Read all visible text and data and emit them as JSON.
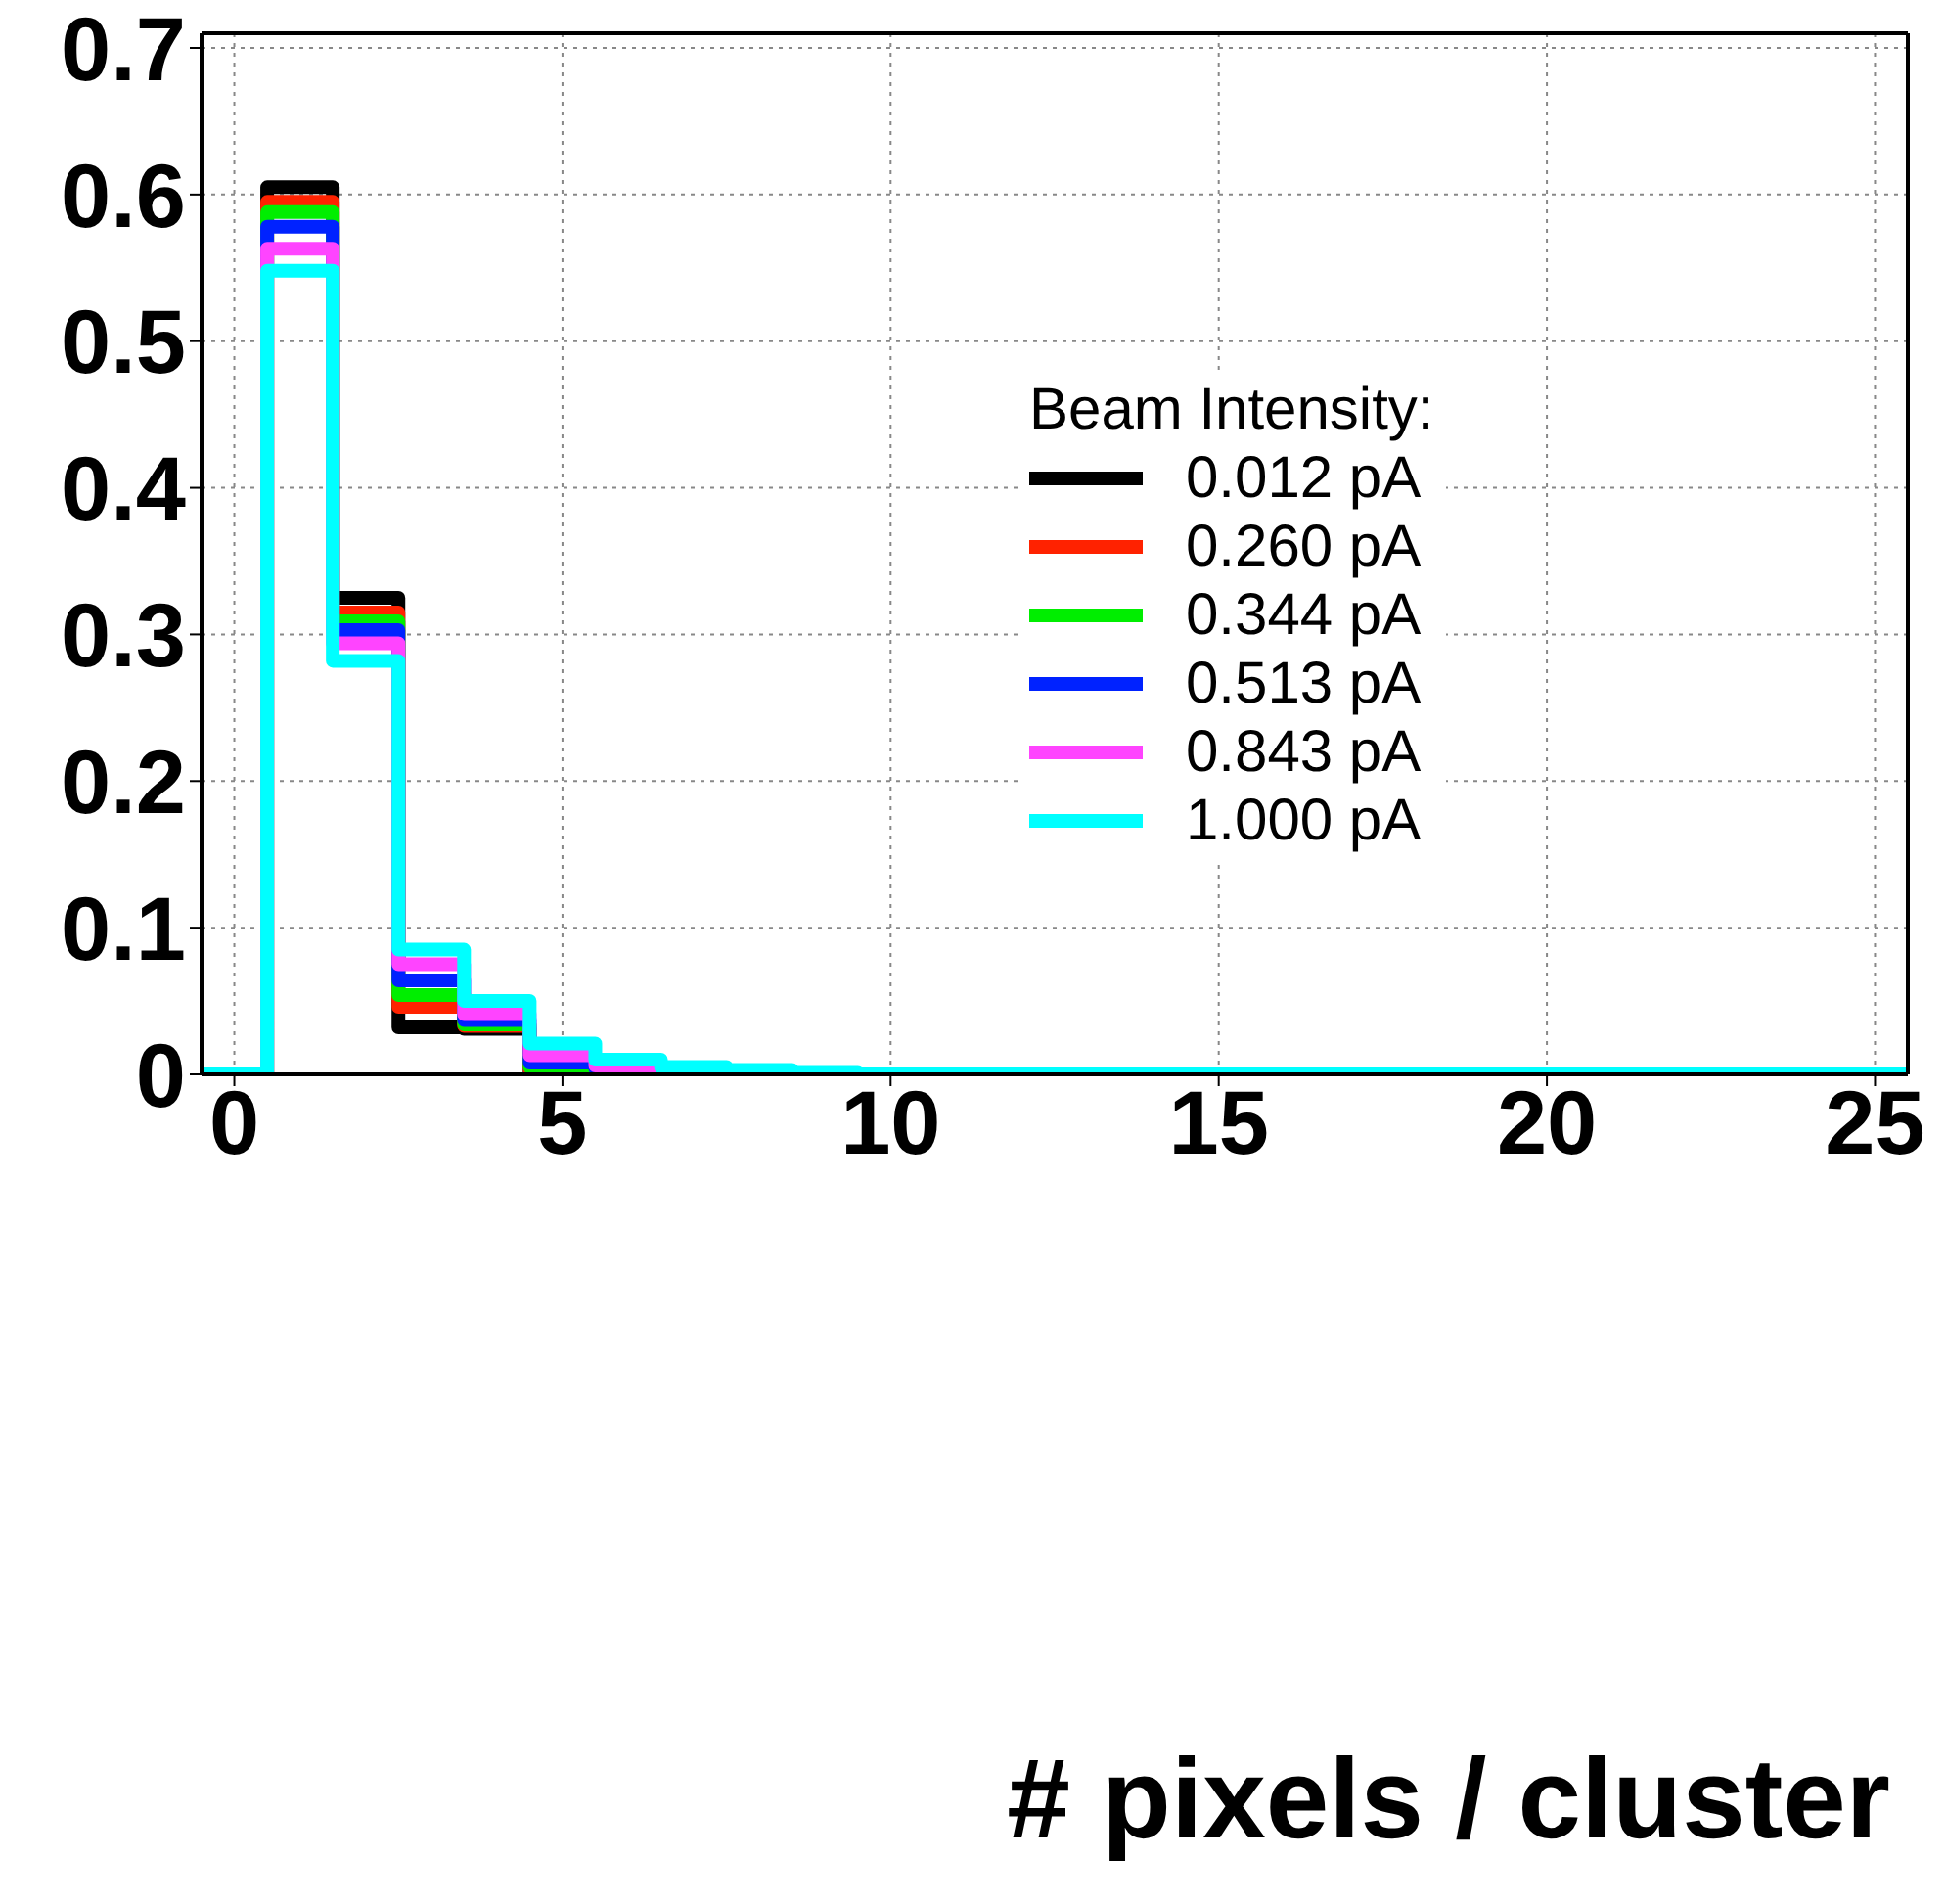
{
  "chart_data": {
    "type": "histogram",
    "xlabel": "# pixels / cluster",
    "legend_title": "Beam Intensity:",
    "legend": "right",
    "grid": true,
    "bins": [
      -0.5,
      0.5,
      1.5,
      2.5,
      3.5,
      4.5,
      5.5,
      6.5,
      7.5,
      8.5,
      9.5,
      10.5,
      11.5,
      12.5,
      13.5,
      14.5,
      15.5,
      16.5,
      17.5,
      18.5,
      19.5,
      20.5,
      21.5,
      22.5,
      23.5,
      24.5,
      25.5
    ],
    "xlim": [
      -0.5,
      25.5
    ],
    "xticks": [
      0,
      5,
      10,
      15,
      20,
      25
    ],
    "ylim": [
      0,
      0.71
    ],
    "yticks": [
      0,
      0.1,
      0.2,
      0.3,
      0.4,
      0.5,
      0.6,
      0.7
    ],
    "series": [
      {
        "name": "0.012 pA",
        "color": "#000000",
        "values": [
          0,
          0.605,
          0.325,
          0.032,
          0.031,
          0.001,
          0.001,
          0,
          0,
          0,
          0,
          0,
          0,
          0,
          0,
          0,
          0,
          0,
          0,
          0,
          0,
          0,
          0,
          0,
          0,
          0
        ]
      },
      {
        "name": "0.260 pA",
        "color": "#ff2200",
        "values": [
          0,
          0.595,
          0.315,
          0.046,
          0.033,
          0.003,
          0.001,
          0.001,
          0,
          0,
          0,
          0,
          0,
          0,
          0,
          0,
          0,
          0,
          0,
          0,
          0,
          0,
          0,
          0,
          0,
          0
        ]
      },
      {
        "name": "0.344 pA",
        "color": "#00ee00",
        "values": [
          0,
          0.588,
          0.309,
          0.054,
          0.034,
          0.005,
          0.002,
          0.001,
          0,
          0,
          0,
          0,
          0,
          0,
          0,
          0,
          0,
          0,
          0,
          0,
          0,
          0,
          0,
          0,
          0,
          0
        ]
      },
      {
        "name": "0.513 pA",
        "color": "#0022ff",
        "values": [
          0,
          0.578,
          0.303,
          0.064,
          0.037,
          0.008,
          0.004,
          0.001,
          0,
          0,
          0,
          0,
          0,
          0,
          0,
          0,
          0,
          0,
          0,
          0,
          0,
          0,
          0,
          0,
          0,
          0
        ]
      },
      {
        "name": "0.843 pA",
        "color": "#ff44ff",
        "values": [
          0,
          0.563,
          0.294,
          0.075,
          0.041,
          0.013,
          0.006,
          0.002,
          0.001,
          0,
          0,
          0,
          0,
          0,
          0,
          0,
          0,
          0,
          0,
          0,
          0,
          0,
          0,
          0,
          0,
          0
        ]
      },
      {
        "name": "1.000 pA",
        "color": "#00ffff",
        "values": [
          0,
          0.548,
          0.282,
          0.085,
          0.05,
          0.021,
          0.01,
          0.005,
          0.003,
          0.001,
          0,
          0,
          0,
          0,
          0,
          0,
          0,
          0,
          0,
          0,
          0,
          0,
          0,
          0,
          0,
          0
        ]
      }
    ]
  }
}
